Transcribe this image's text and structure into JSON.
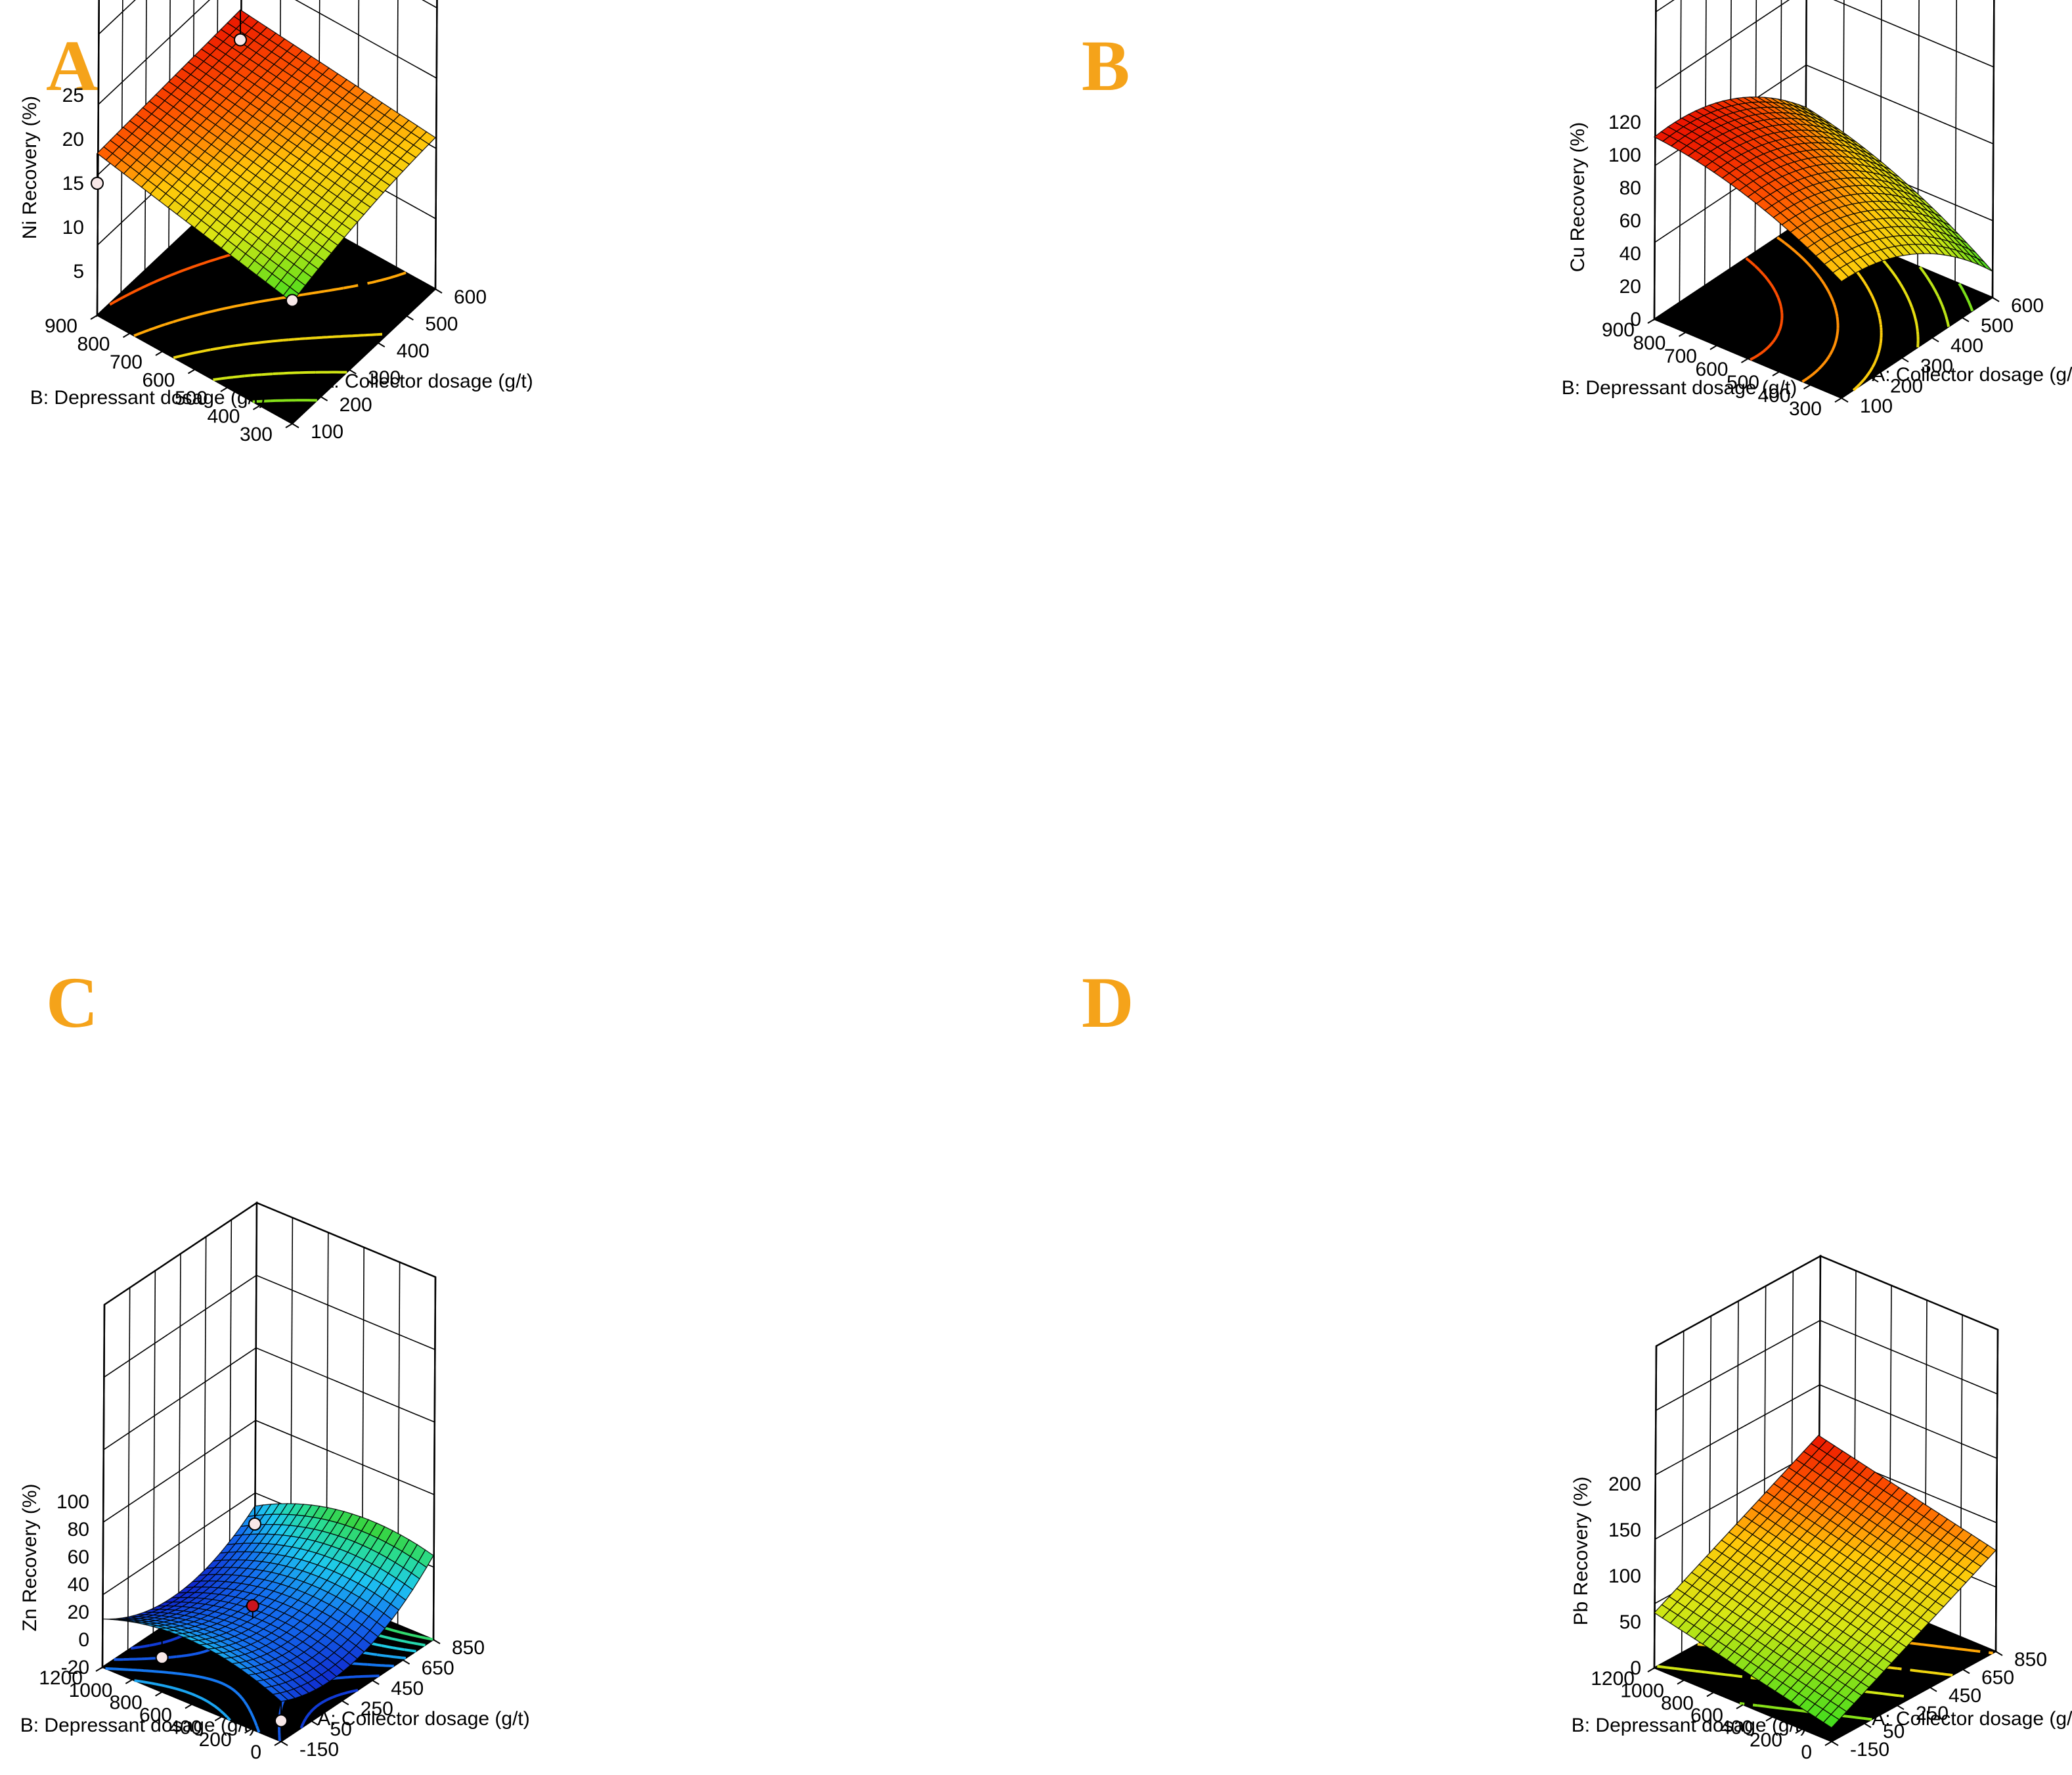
{
  "figure": {
    "panels": [
      "A",
      "B",
      "C",
      "D"
    ]
  },
  "chart_data": [
    {
      "panel": "A",
      "type": "surface",
      "colormap": "green-yellow-red",
      "zlabel": "Ni Recovery  (%)",
      "xlabel": "A: Collector dosage (g/t)",
      "ylabel": "B: Depressant dosage (g/t)",
      "x_ticks": [
        "100",
        "200",
        "300",
        "400",
        "500",
        "600"
      ],
      "y_ticks": [
        "300",
        "400",
        "500",
        "600",
        "700",
        "800",
        "900"
      ],
      "z_ticks": [
        "5",
        "10",
        "15",
        "20",
        "25"
      ],
      "xlim": [
        100,
        600
      ],
      "ylim": [
        300,
        900
      ],
      "zlim": [
        0,
        25
      ],
      "surface_corners": {
        "x100_y300": 14,
        "x600_y300": 17,
        "x100_y900": 18.5,
        "x600_y900": 19.5
      },
      "design_points": [
        {
          "x": 100,
          "y": 300,
          "z": 14
        },
        {
          "x": 600,
          "y": 900,
          "z": 16
        },
        {
          "x": 100,
          "y": 900,
          "z": 15
        }
      ],
      "contour_colors": [
        "#ff4a00",
        "#ffaa00",
        "#f0dc10",
        "#e6e610",
        "#a0e020"
      ]
    },
    {
      "panel": "B",
      "type": "surface",
      "colormap": "green-yellow-red",
      "zlabel": "Cu Recovery  (%)",
      "xlabel": "A: Collector dosage (g/t)",
      "ylabel": "B: Depressant dosage (g/t)",
      "x_ticks": [
        "100",
        "200",
        "300",
        "400",
        "500",
        "600"
      ],
      "y_ticks": [
        "300",
        "400",
        "500",
        "600",
        "700",
        "800",
        "900"
      ],
      "z_ticks": [
        "0",
        "20",
        "40",
        "60",
        "80",
        "100",
        "120"
      ],
      "xlim": [
        100,
        600
      ],
      "ylim": [
        300,
        900
      ],
      "zlim": [
        0,
        120
      ],
      "surface_corners": {
        "x100_y300": 15,
        "x600_y300": 65,
        "x100_y900": 98,
        "x600_y900": 110
      },
      "design_points": [],
      "contour_colors": [
        "#ff2200",
        "#ff8a00",
        "#ffbe00",
        "#e6e610",
        "#a0e020",
        "#30d030"
      ]
    },
    {
      "panel": "C",
      "type": "surface",
      "colormap": "blue-cyan-green",
      "zlabel": "Zn Recovery (%)",
      "xlabel": "A: Collector dosage (g/t)",
      "ylabel": "B: Depressant dosage (g/t)",
      "x_ticks": [
        "-150",
        "50",
        "250",
        "450",
        "650",
        "850"
      ],
      "y_ticks": [
        "0",
        "200",
        "400",
        "600",
        "800",
        "1000",
        "1200"
      ],
      "z_ticks": [
        "-20",
        "0",
        "20",
        "40",
        "60",
        "80",
        "100"
      ],
      "xlim": [
        -150,
        850
      ],
      "ylim": [
        0,
        1200
      ],
      "zlim": [
        -20,
        100
      ],
      "surface_corners": {
        "x-150_y0": 15,
        "x850_y0": 45,
        "x-150_y1200": 18,
        "x850_y1200": 45
      },
      "design_points": [
        {
          "x": 250,
          "y": 600,
          "z": 22
        },
        {
          "x": -150,
          "y": 800,
          "z": 5
        },
        {
          "x": -150,
          "y": 0,
          "z": -5
        },
        {
          "x": 850,
          "y": 1200,
          "z": 10
        }
      ],
      "contour_colors": [
        "#1030ff",
        "#1048ff",
        "#1070ff",
        "#10b0ff",
        "#20d0d0",
        "#20e080",
        "#30d030"
      ]
    },
    {
      "panel": "D",
      "type": "surface",
      "colormap": "green-yellow-red",
      "zlabel": "Pb Recovery (%)",
      "xlabel": "A: Collector dosage (g/t)",
      "ylabel": "B: Depressant dosage (g/t)",
      "x_ticks": [
        "-150",
        "50",
        "250",
        "450",
        "650",
        "850"
      ],
      "y_ticks": [
        "0",
        "200",
        "400",
        "600",
        "800",
        "1000",
        "1200"
      ],
      "z_ticks": [
        "0",
        "50",
        "100",
        "150",
        "200"
      ],
      "xlim": [
        -150,
        850
      ],
      "ylim": [
        0,
        1200
      ],
      "zlim": [
        0,
        200
      ],
      "surface_corners": {
        "x-150_y0": 15,
        "x850_y0": 110,
        "x-150_y1200": 60,
        "x850_y1200": 155
      },
      "design_points": [],
      "contour_colors": [
        "#ff2200",
        "#ff4000",
        "#ff5a00",
        "#ffdd00",
        "#f0e020"
      ]
    }
  ]
}
